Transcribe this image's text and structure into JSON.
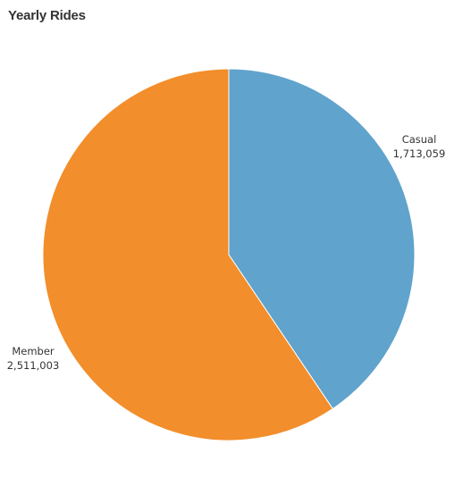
{
  "chart_data": {
    "type": "pie",
    "title": "Yearly Rides",
    "slices": [
      {
        "name": "Casual",
        "value": 1713059,
        "value_label": "1,713,059",
        "color": "#60a3cc"
      },
      {
        "name": "Member",
        "value": 2511003,
        "value_label": "2,511,003",
        "color": "#f28e2b"
      }
    ],
    "start_angle": "12 o'clock",
    "direction": "clockwise",
    "legend": "none"
  }
}
